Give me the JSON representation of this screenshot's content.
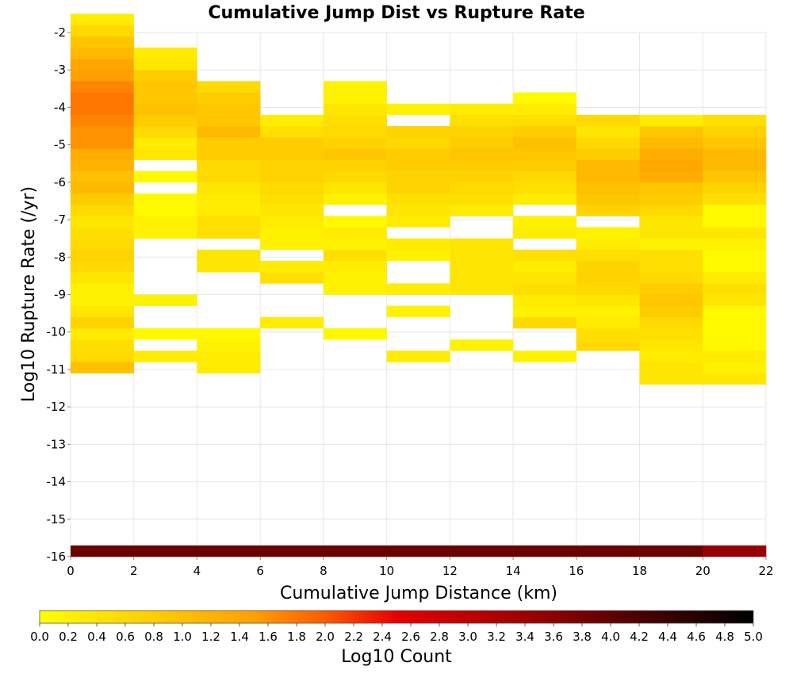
{
  "chart_data": {
    "type": "heatmap",
    "title": "Cumulative Jump Dist vs Rupture Rate",
    "xlabel": "Cumulative Jump Distance (km)",
    "ylabel": "Log10 Rupture Rate (/yr)",
    "xlim": [
      0,
      22
    ],
    "ylim": [
      -16,
      -2
    ],
    "x_ticks": [
      0,
      2,
      4,
      6,
      8,
      10,
      12,
      14,
      16,
      18,
      20,
      22
    ],
    "y_ticks": [
      -2,
      -3,
      -4,
      -5,
      -6,
      -7,
      -8,
      -9,
      -10,
      -11,
      -12,
      -13,
      -14,
      -15,
      -16
    ],
    "x_bin_width": 2,
    "y_bin_height": 0.3,
    "colorbar": {
      "label": "Log10 Count",
      "range": [
        0.0,
        5.0
      ],
      "ticks": [
        "0.0",
        "0.2",
        "0.4",
        "0.6",
        "0.8",
        "1.0",
        "1.2",
        "1.4",
        "1.6",
        "1.8",
        "2.0",
        "2.2",
        "2.4",
        "2.6",
        "2.8",
        "3.0",
        "3.2",
        "3.4",
        "3.6",
        "3.8",
        "4.0",
        "4.2",
        "4.4",
        "4.6",
        "4.8",
        "5.0"
      ]
    },
    "grid": true,
    "columns": [
      {
        "x_start": 0,
        "y_bottom": -16.0,
        "values": [
          3.9
        ]
      },
      {
        "x_start": 0,
        "y_bottom": -11.1,
        "values": [
          1.0,
          0.6,
          0.5,
          0.3,
          0.7,
          0.4,
          0.2,
          0.2,
          0.4,
          0.6,
          0.7,
          0.6,
          0.5,
          0.4,
          0.6,
          0.8,
          1.1,
          1.0,
          1.2,
          1.3,
          1.6,
          1.6,
          1.7,
          1.8,
          1.8,
          1.7,
          1.5,
          1.4,
          1.1,
          0.9,
          0.6,
          0.3
        ]
      },
      {
        "x_start": 2,
        "y_bottom": -16.0,
        "values": [
          3.9
        ]
      },
      {
        "x_start": 2,
        "y_bottom": -10.8,
        "values": [
          0.3,
          null,
          0.1,
          null,
          null,
          0.2,
          null,
          null,
          null,
          null,
          null,
          0.2,
          0.2,
          0.1,
          0.1,
          null,
          0.1,
          null,
          0.4,
          0.3,
          0.6,
          0.8,
          1.0,
          0.9,
          0.9,
          0.8,
          0.4,
          0.3
        ]
      },
      {
        "x_start": 4,
        "y_bottom": -16.0,
        "values": [
          3.9
        ]
      },
      {
        "x_start": 4,
        "y_bottom": -11.1,
        "values": [
          0.3,
          0.3,
          0.2,
          0.1,
          null,
          null,
          null,
          null,
          null,
          0.4,
          0.4,
          null,
          0.5,
          0.5,
          0.3,
          0.3,
          0.4,
          0.6,
          0.6,
          0.8,
          0.8,
          1.1,
          0.9,
          0.9,
          0.8,
          0.6
        ]
      },
      {
        "x_start": 6,
        "y_bottom": -16.0,
        "values": [
          3.9
        ]
      },
      {
        "x_start": 6,
        "y_bottom": -9.9,
        "values": [
          0.3,
          null,
          null,
          null,
          0.5,
          0.3,
          null,
          0.2,
          0.2,
          0.3,
          0.4,
          0.5,
          0.6,
          0.7,
          0.7,
          0.8,
          0.8,
          0.5,
          0.3
        ]
      },
      {
        "x_start": 8,
        "y_bottom": -16.0,
        "values": [
          3.9
        ]
      },
      {
        "x_start": 8,
        "y_bottom": -10.2,
        "values": [
          0.1,
          null,
          null,
          null,
          0.2,
          0.2,
          0.3,
          0.5,
          0.2,
          0.3,
          0.1,
          null,
          0.2,
          0.4,
          0.6,
          0.7,
          0.9,
          0.7,
          0.6,
          0.5,
          0.4,
          0.2,
          0.2
        ]
      },
      {
        "x_start": 10,
        "y_bottom": -16.0,
        "values": [
          3.9
        ]
      },
      {
        "x_start": 10,
        "y_bottom": -10.8,
        "values": [
          0.3,
          null,
          null,
          null,
          0.2,
          null,
          0.3,
          null,
          null,
          0.2,
          0.3,
          null,
          0.3,
          0.4,
          0.5,
          0.7,
          0.7,
          0.8,
          0.8,
          0.6,
          0.7,
          null,
          0.2
        ]
      },
      {
        "x_start": 12,
        "y_bottom": -16.0,
        "values": [
          3.9
        ]
      },
      {
        "x_start": 12,
        "y_bottom": -10.5,
        "values": [
          0.2,
          null,
          null,
          null,
          null,
          0.4,
          0.4,
          0.4,
          0.4,
          0.4,
          null,
          null,
          0.3,
          0.5,
          0.6,
          0.7,
          0.8,
          0.9,
          0.8,
          0.7,
          0.5,
          0.3
        ]
      },
      {
        "x_start": 14,
        "y_bottom": -16.0,
        "values": [
          3.9
        ]
      },
      {
        "x_start": 14,
        "y_bottom": -10.8,
        "values": [
          0.2,
          null,
          null,
          0.6,
          0.2,
          0.3,
          0.5,
          0.4,
          0.3,
          0.5,
          null,
          0.3,
          0.2,
          null,
          0.3,
          0.5,
          0.6,
          0.8,
          0.9,
          1.0,
          0.8,
          0.5,
          0.3,
          0.1
        ]
      },
      {
        "x_start": 16,
        "y_bottom": -16.0,
        "values": [
          3.9
        ]
      },
      {
        "x_start": 16,
        "y_bottom": -10.5,
        "values": [
          0.6,
          0.5,
          0.3,
          0.2,
          0.4,
          0.6,
          0.7,
          0.7,
          0.5,
          0.3,
          0.2,
          null,
          0.7,
          0.9,
          1.0,
          1.1,
          1.1,
          0.8,
          0.6,
          0.4,
          0.6
        ]
      },
      {
        "x_start": 18,
        "y_bottom": -16.0,
        "values": [
          3.9
        ]
      },
      {
        "x_start": 18,
        "y_bottom": -11.4,
        "values": [
          0.4,
          0.4,
          0.3,
          0.4,
          0.5,
          0.6,
          0.8,
          0.9,
          0.8,
          0.6,
          0.5,
          0.5,
          0.2,
          0.4,
          0.4,
          0.6,
          0.8,
          0.9,
          1.3,
          1.4,
          1.3,
          1.1,
          0.9,
          0.3
        ]
      },
      {
        "x_start": 20,
        "y_bottom": -16.0,
        "values": [
          3.5
        ]
      },
      {
        "x_start": 20,
        "y_bottom": -11.4,
        "values": [
          0.4,
          0.2,
          0.3,
          0.1,
          0.1,
          0.1,
          0.1,
          0.4,
          0.5,
          0.3,
          0.1,
          0.1,
          0.2,
          0.4,
          0.1,
          0.1,
          0.5,
          0.7,
          0.9,
          1.1,
          1.1,
          0.9,
          0.7,
          0.5
        ]
      }
    ]
  }
}
